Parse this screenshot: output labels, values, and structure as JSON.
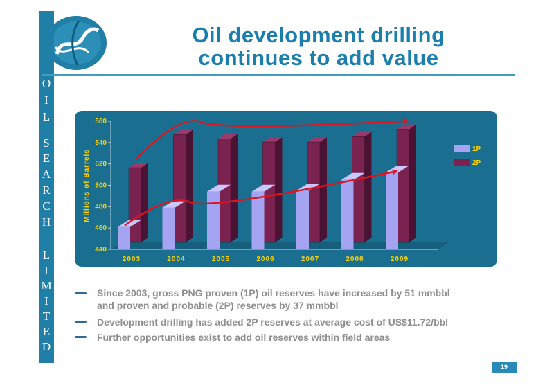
{
  "slide": {
    "title_line1": "Oil development drilling",
    "title_line2": "continues to add value",
    "page_number": "19"
  },
  "sidebar": {
    "letters": [
      "O",
      "I",
      "L",
      "S",
      "E",
      "A",
      "R",
      "C",
      "H",
      "L",
      "I",
      "M",
      "I",
      "T",
      "E",
      "D"
    ]
  },
  "colors": {
    "brand_blue": "#1b7fae",
    "chart_bg": "#1a6f91",
    "series_1p": "#a4a4f2",
    "series_2p": "#7a2350",
    "arrow": "#e0141e"
  },
  "bullets": [
    {
      "line1": "Since 2003, gross PNG proven (1P) oil reserves have increased by 51 mmbbl",
      "line2": "and proven and probable (2P) reserves by 37 mmbbl"
    },
    {
      "line1": "Development drilling has added 2P reserves at average cost of US$11.72/bbl"
    },
    {
      "line1": "Further opportunities exist to add oil reserves within field areas"
    }
  ],
  "chart_data": {
    "type": "bar",
    "categories": [
      "2003",
      "2004",
      "2005",
      "2006",
      "2007",
      "2008",
      "2009"
    ],
    "series": [
      {
        "name": "1P",
        "values": [
          461,
          479,
          494,
          494,
          495,
          505,
          512
        ]
      },
      {
        "name": "2P",
        "values": [
          510,
          541,
          537,
          534,
          534,
          539,
          546
        ]
      }
    ],
    "title": "",
    "xlabel": "",
    "ylabel": "Millions of Barrels",
    "ylim": [
      440,
      560
    ],
    "yticks": [
      440,
      460,
      480,
      500,
      520,
      540,
      560
    ],
    "legend": "right",
    "grid": false,
    "annotations": "red trend arrows over 1P and 2P series"
  }
}
